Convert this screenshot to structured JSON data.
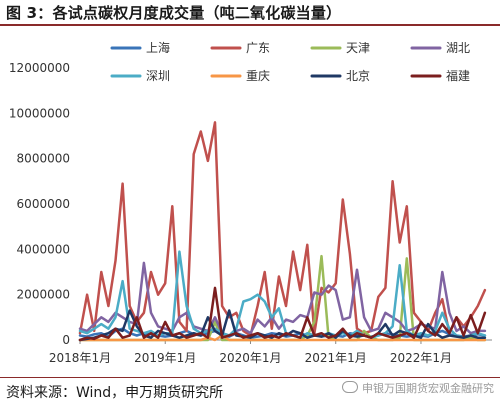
{
  "figure": {
    "title": "图 3：各试点碳权月度成交量（吨二氧化碳当量）",
    "source": "资料来源：Wind，申万期货研究所",
    "watermark": "申银万国期货宏观金融研究"
  },
  "chart_data": {
    "type": "line",
    "title": "",
    "xlabel": "",
    "ylabel": "",
    "ylim": [
      0,
      12000000
    ],
    "yticks": [
      0,
      2000000,
      4000000,
      6000000,
      8000000,
      10000000,
      12000000
    ],
    "ytick_labels": [
      "0",
      "2000000",
      "4000000",
      "6000000",
      "8000000",
      "10000000",
      "12000000"
    ],
    "xlim": [
      0,
      58
    ],
    "xticks": [
      0,
      12,
      24,
      36,
      48
    ],
    "xtick_labels": [
      "2018年1月",
      "2019年1月",
      "2020年1月",
      "2021年1月",
      "2022年1月"
    ],
    "x_start": "2018-01",
    "grid": false,
    "legend_position": "top",
    "series": [
      {
        "name": "上海",
        "color": "#3a74b8",
        "values": [
          200000,
          150000,
          250000,
          300000,
          150000,
          400000,
          500000,
          300000,
          200000,
          300000,
          250000,
          200000,
          150000,
          200000,
          300000,
          400000,
          250000,
          200000,
          300000,
          400000,
          200000,
          150000,
          300000,
          200000,
          100000,
          150000,
          200000,
          300000,
          250000,
          150000,
          200000,
          300000,
          200000,
          250000,
          150000,
          200000,
          200000,
          150000,
          300000,
          250000,
          200000,
          150000,
          200000,
          300000,
          250000,
          200000,
          150000,
          200000,
          200000,
          150000,
          300000,
          400000,
          250000,
          200000,
          150000,
          200000,
          250000,
          200000
        ]
      },
      {
        "name": "广东",
        "color": "#c0504d",
        "values": [
          300000,
          2000000,
          400000,
          3000000,
          1500000,
          3500000,
          6900000,
          1500000,
          800000,
          1200000,
          3000000,
          2000000,
          2500000,
          5900000,
          800000,
          400000,
          8200000,
          9200000,
          7900000,
          9600000,
          1500000,
          1000000,
          1200000,
          400000,
          200000,
          1500000,
          3000000,
          500000,
          2800000,
          1500000,
          3900000,
          2200000,
          4200000,
          300000,
          2300000,
          2100000,
          2500000,
          6200000,
          3800000,
          500000,
          300000,
          400000,
          1900000,
          2300000,
          7000000,
          4300000,
          5900000,
          1200000,
          800000,
          400000,
          1200000,
          1800000,
          300000,
          1000000,
          600000,
          1000000,
          1500000,
          2200000
        ]
      },
      {
        "name": "天津",
        "color": "#9bbb59",
        "values": [
          0,
          0,
          0,
          0,
          0,
          0,
          0,
          0,
          0,
          0,
          0,
          0,
          0,
          0,
          0,
          0,
          0,
          0,
          0,
          800000,
          0,
          0,
          0,
          0,
          0,
          0,
          0,
          0,
          0,
          0,
          0,
          0,
          200000,
          800000,
          3700000,
          100000,
          0,
          0,
          0,
          0,
          400000,
          100000,
          0,
          0,
          0,
          100000,
          3600000,
          0,
          0,
          0,
          0,
          0,
          0,
          0,
          0,
          100000,
          0,
          0
        ]
      },
      {
        "name": "湖北",
        "color": "#8064a2",
        "values": [
          500000,
          400000,
          700000,
          1000000,
          800000,
          1200000,
          1000000,
          800000,
          700000,
          3400000,
          1200000,
          600000,
          500000,
          400000,
          1000000,
          1200000,
          600000,
          500000,
          400000,
          1000000,
          300000,
          200000,
          400000,
          500000,
          300000,
          900000,
          600000,
          1000000,
          500000,
          900000,
          800000,
          1100000,
          1000000,
          2100000,
          2000000,
          2400000,
          2200000,
          900000,
          1000000,
          3100000,
          1000000,
          400000,
          500000,
          1200000,
          1000000,
          800000,
          400000,
          500000,
          700000,
          600000,
          500000,
          3000000,
          1200000,
          400000,
          600000,
          300000,
          400000,
          400000
        ]
      },
      {
        "name": "深圳",
        "color": "#4bacc6",
        "values": [
          400000,
          300000,
          500000,
          700000,
          500000,
          1000000,
          2600000,
          500000,
          400000,
          300000,
          400000,
          200000,
          300000,
          300000,
          3900000,
          1500000,
          500000,
          300000,
          400000,
          500000,
          300000,
          200000,
          500000,
          1700000,
          1800000,
          2000000,
          1700000,
          1000000,
          1400000,
          300000,
          200000,
          100000,
          300000,
          200000,
          200000,
          300000,
          200000,
          300000,
          200000,
          400000,
          200000,
          100000,
          200000,
          300000,
          600000,
          3300000,
          400000,
          200000,
          300000,
          200000,
          400000,
          1200000,
          500000,
          200000,
          100000,
          200000,
          300000,
          200000
        ]
      },
      {
        "name": "重庆",
        "color": "#f79646",
        "values": [
          0,
          0,
          0,
          0,
          0,
          0,
          0,
          0,
          0,
          0,
          0,
          0,
          0,
          0,
          0,
          0,
          0,
          0,
          100000,
          0,
          200000,
          0,
          0,
          0,
          0,
          0,
          0,
          0,
          0,
          0,
          0,
          0,
          0,
          0,
          0,
          0,
          0,
          0,
          0,
          0,
          0,
          0,
          0,
          0,
          0,
          0,
          0,
          0,
          0,
          0,
          0,
          0,
          0,
          0,
          0,
          0,
          0,
          0
        ]
      },
      {
        "name": "北京",
        "color": "#1f3864",
        "values": [
          0,
          50000,
          100000,
          200000,
          300000,
          500000,
          400000,
          1300000,
          600000,
          200000,
          100000,
          400000,
          300000,
          200000,
          100000,
          200000,
          300000,
          200000,
          1000000,
          400000,
          200000,
          1300000,
          200000,
          150000,
          100000,
          300000,
          200000,
          100000,
          300000,
          200000,
          400000,
          300000,
          100000,
          200000,
          150000,
          300000,
          100000,
          400000,
          200000,
          150000,
          200000,
          100000,
          300000,
          700000,
          200000,
          400000,
          300000,
          200000,
          100000,
          700000,
          300000,
          100000,
          200000,
          150000,
          100000,
          200000,
          100000,
          100000
        ]
      },
      {
        "name": "福建",
        "color": "#7b1e1e",
        "values": [
          0,
          100000,
          50000,
          200000,
          100000,
          500000,
          100000,
          200000,
          1000000,
          100000,
          300000,
          100000,
          800000,
          200000,
          300000,
          100000,
          200000,
          300000,
          100000,
          2300000,
          100000,
          200000,
          300000,
          100000,
          200000,
          300000,
          100000,
          200000,
          100000,
          300000,
          200000,
          100000,
          1000000,
          200000,
          300000,
          100000,
          200000,
          500000,
          100000,
          300000,
          200000,
          100000,
          300000,
          200000,
          100000,
          200000,
          300000,
          100000,
          800000,
          400000,
          200000,
          700000,
          300000,
          1000000,
          200000,
          1100000,
          300000,
          1200000
        ]
      }
    ]
  }
}
